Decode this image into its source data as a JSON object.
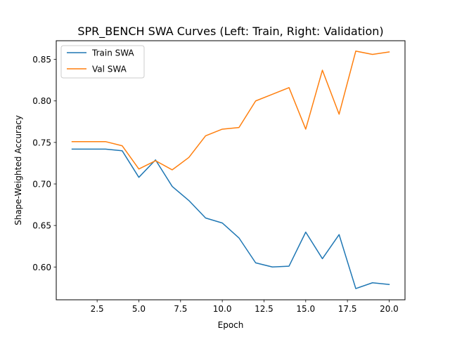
{
  "chart_data": {
    "type": "line",
    "title": "SPR_BENCH SWA Curves (Left: Train, Right: Validation)",
    "xlabel": "Epoch",
    "ylabel": "Shape-Weighted Accuracy",
    "xlim": [
      0.05,
      20.95
    ],
    "ylim": [
      0.5605,
      0.8725
    ],
    "xticks": [
      2.5,
      5.0,
      7.5,
      10.0,
      12.5,
      15.0,
      17.5,
      20.0
    ],
    "xtick_labels": [
      "2.5",
      "5.0",
      "7.5",
      "10.0",
      "12.5",
      "15.0",
      "17.5",
      "20.0"
    ],
    "yticks": [
      0.6,
      0.65,
      0.7,
      0.75,
      0.8,
      0.85
    ],
    "ytick_labels": [
      "0.60",
      "0.65",
      "0.70",
      "0.75",
      "0.80",
      "0.85"
    ],
    "grid": false,
    "legend_position": "top-left",
    "x": [
      1,
      2,
      3,
      4,
      5,
      6,
      7,
      8,
      9,
      10,
      11,
      12,
      13,
      14,
      15,
      16,
      17,
      18,
      19,
      20
    ],
    "series": [
      {
        "name": "Train SWA",
        "color": "#1f77b4",
        "values": [
          0.742,
          0.742,
          0.742,
          0.74,
          0.708,
          0.729,
          0.697,
          0.68,
          0.659,
          0.653,
          0.635,
          0.605,
          0.6,
          0.601,
          0.642,
          0.61,
          0.639,
          0.574,
          0.581,
          0.579
        ]
      },
      {
        "name": "Val SWA",
        "color": "#ff7f0e",
        "values": [
          0.751,
          0.751,
          0.751,
          0.746,
          0.718,
          0.728,
          0.717,
          0.732,
          0.758,
          0.766,
          0.768,
          0.8,
          0.808,
          0.816,
          0.766,
          0.837,
          0.784,
          0.86,
          0.856,
          0.859
        ]
      }
    ]
  }
}
